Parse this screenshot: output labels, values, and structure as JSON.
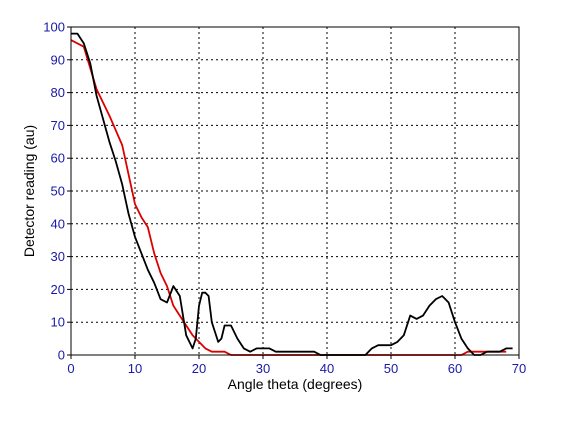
{
  "chart_data": {
    "type": "line",
    "title": "",
    "xlabel": "Angle theta (degrees)",
    "ylabel": "Detector reading (au)",
    "xlim": [
      0,
      70
    ],
    "ylim": [
      0,
      100
    ],
    "x_ticks": [
      0,
      10,
      20,
      30,
      40,
      50,
      60,
      70
    ],
    "y_ticks": [
      0,
      10,
      20,
      30,
      40,
      50,
      60,
      70,
      80,
      90,
      100
    ],
    "x_tick_labels": [
      "0",
      "10",
      "20",
      "30",
      "40",
      "50",
      "60",
      "70"
    ],
    "y_tick_labels": [
      "0",
      "10",
      "20",
      "30",
      "40",
      "50",
      "60",
      "70",
      "80",
      "90",
      "100"
    ],
    "grid": true,
    "legend": "none",
    "colors": {
      "axes": "#000000",
      "grid": "#000000",
      "tick_text": "#1a1aa6",
      "frame": "#000000"
    },
    "series": [
      {
        "color": "#dd0000",
        "x": [
          0,
          2,
          4,
          6,
          8,
          10,
          11,
          12,
          13,
          14,
          15,
          16,
          17,
          18,
          19,
          20,
          21,
          22,
          23,
          24,
          25,
          30,
          40,
          50,
          60,
          61,
          62,
          65,
          68
        ],
        "y": [
          96,
          94,
          81,
          73,
          64,
          46,
          42,
          39,
          31,
          25,
          21,
          15,
          12,
          9,
          6,
          4,
          2,
          1,
          1,
          1,
          0,
          0,
          0,
          0,
          0,
          0,
          1,
          1,
          1
        ]
      },
      {
        "color": "#000000",
        "x": [
          0,
          1,
          2,
          3,
          4,
          5,
          6,
          7,
          8,
          9,
          10,
          11,
          12,
          13,
          14,
          15,
          16,
          17,
          18,
          19,
          19.5,
          20,
          20.5,
          21,
          21.5,
          22,
          23,
          23.5,
          24,
          25,
          26,
          27,
          28,
          29,
          30,
          31,
          32,
          35,
          38,
          39,
          40,
          41,
          45,
          46,
          47,
          48,
          49,
          50,
          51,
          52,
          53,
          54,
          55,
          56,
          57,
          58,
          59,
          60,
          61,
          62,
          63,
          64,
          65,
          66,
          67,
          68,
          69
        ],
        "y": [
          98,
          98,
          95,
          89,
          79,
          72,
          65,
          59,
          52,
          43,
          36,
          31,
          26,
          22,
          17,
          16,
          21,
          18,
          6,
          2,
          5,
          15,
          19,
          19,
          18,
          10,
          4,
          5,
          9,
          9,
          5,
          2,
          1,
          2,
          2,
          2,
          1,
          1,
          1,
          0,
          0,
          0,
          0,
          0,
          2,
          3,
          3,
          3,
          4,
          6,
          12,
          11,
          12,
          15,
          17,
          18,
          16,
          10,
          5,
          2,
          0,
          0,
          1,
          1,
          1,
          2,
          2
        ]
      }
    ]
  }
}
